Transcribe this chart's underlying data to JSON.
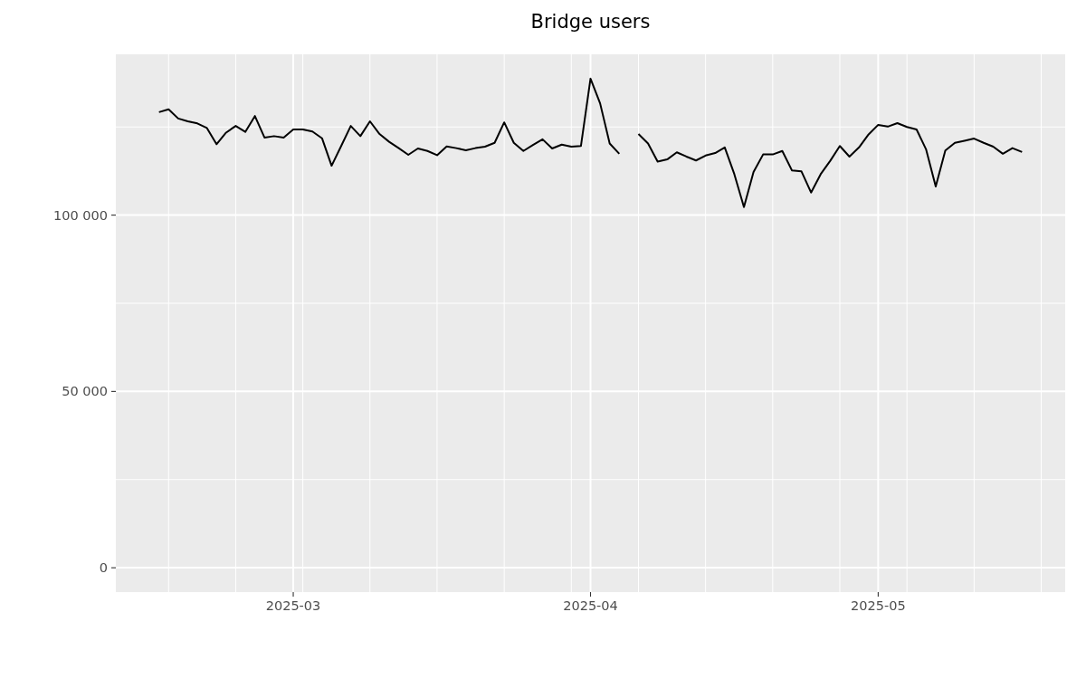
{
  "chart_data": {
    "type": "line",
    "title": "Bridge users",
    "x": [
      "2025-02-15",
      "2025-02-16",
      "2025-02-17",
      "2025-02-18",
      "2025-02-19",
      "2025-02-20",
      "2025-02-21",
      "2025-02-22",
      "2025-02-23",
      "2025-02-24",
      "2025-02-25",
      "2025-02-26",
      "2025-02-27",
      "2025-02-28",
      "2025-03-01",
      "2025-03-02",
      "2025-03-03",
      "2025-03-04",
      "2025-03-05",
      "2025-03-06",
      "2025-03-07",
      "2025-03-08",
      "2025-03-09",
      "2025-03-10",
      "2025-03-11",
      "2025-03-12",
      "2025-03-13",
      "2025-03-14",
      "2025-03-15",
      "2025-03-16",
      "2025-03-17",
      "2025-03-18",
      "2025-03-19",
      "2025-03-20",
      "2025-03-21",
      "2025-03-22",
      "2025-03-23",
      "2025-03-24",
      "2025-03-25",
      "2025-03-26",
      "2025-03-27",
      "2025-03-28",
      "2025-03-29",
      "2025-03-30",
      "2025-03-31",
      "2025-04-01",
      "2025-04-02",
      "2025-04-03",
      "2025-04-04",
      "2025-04-05",
      "2025-04-06",
      "2025-04-07",
      "2025-04-08",
      "2025-04-09",
      "2025-04-10",
      "2025-04-11",
      "2025-04-12",
      "2025-04-13",
      "2025-04-14",
      "2025-04-15",
      "2025-04-16",
      "2025-04-17",
      "2025-04-18",
      "2025-04-19",
      "2025-04-20",
      "2025-04-21",
      "2025-04-22",
      "2025-04-23",
      "2025-04-24",
      "2025-04-25",
      "2025-04-26",
      "2025-04-27",
      "2025-04-28",
      "2025-04-29",
      "2025-04-30",
      "2025-05-01",
      "2025-05-02",
      "2025-05-03",
      "2025-05-04",
      "2025-05-05",
      "2025-05-06",
      "2025-05-07",
      "2025-05-08",
      "2025-05-09",
      "2025-05-10",
      "2025-05-11",
      "2025-05-12",
      "2025-05-13",
      "2025-05-14",
      "2025-05-15",
      "2025-05-16"
    ],
    "series": [
      {
        "color": "#000000",
        "values": [
          129200,
          130000,
          127400,
          126600,
          126000,
          124700,
          120100,
          123400,
          125300,
          123600,
          128100,
          122000,
          122400,
          122000,
          124300,
          124300,
          123700,
          121800,
          114000,
          119600,
          125300,
          122400,
          126600,
          123000,
          120800,
          119000,
          117100,
          118900,
          118200,
          117000,
          119500,
          119000,
          118400,
          119000,
          119400,
          120500,
          126300,
          120500,
          118200,
          119900,
          121500,
          118900,
          120000,
          119400,
          119600,
          138700,
          131700,
          120300,
          117400,
          null,
          123000,
          120300,
          115200,
          115800,
          117800,
          116600,
          115500,
          116900,
          117600,
          119200,
          111600,
          102300,
          112200,
          117200,
          117200,
          118200,
          112700,
          112400,
          106400,
          111600,
          115400,
          119600,
          116600,
          119200,
          122900,
          125600,
          125100,
          126100,
          125000,
          124300,
          118600,
          108100,
          118300,
          120500,
          121100,
          121700,
          120500,
          119400,
          117400,
          119000,
          117900
        ]
      }
    ],
    "xlim": [
      "2025-02-10T12:00",
      "2025-05-20T12:00"
    ],
    "ylim": [
      -6900,
      145600
    ],
    "xticks": [
      {
        "value": "2025-03-01",
        "label": "2025-03"
      },
      {
        "value": "2025-04-01",
        "label": "2025-04"
      },
      {
        "value": "2025-05-01",
        "label": "2025-05"
      }
    ],
    "yticks": [
      0,
      {
        "value": 50000,
        "label": "50 000"
      },
      {
        "value": 100000,
        "label": "100 000"
      }
    ],
    "grid": true
  }
}
